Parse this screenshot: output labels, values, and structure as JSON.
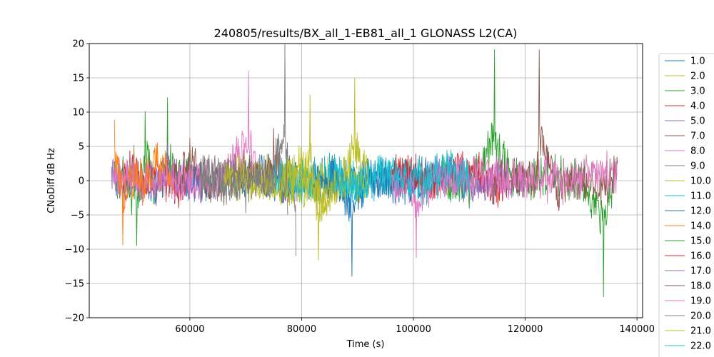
{
  "chart_data": {
    "type": "line",
    "title": "240805/results/BX_all_1-EB81_all_1 GLONASS L2(CA)",
    "xlabel": "Time (s)",
    "ylabel": "CNoDiff dB Hz",
    "xlim": [
      42000,
      141000
    ],
    "ylim": [
      -20,
      20
    ],
    "xticks": [
      {
        "value": 60000,
        "label": "60000"
      },
      {
        "value": 80000,
        "label": "80000"
      },
      {
        "value": 100000,
        "label": "100000"
      },
      {
        "value": 120000,
        "label": "120000"
      },
      {
        "value": 140000,
        "label": "140000"
      }
    ],
    "yticks": [
      {
        "value": 20,
        "label": "20"
      },
      {
        "value": 15,
        "label": "15"
      },
      {
        "value": 10,
        "label": "10"
      },
      {
        "value": 5,
        "label": "5"
      },
      {
        "value": 0,
        "label": "0"
      },
      {
        "value": -5,
        "label": "−5"
      },
      {
        "value": -10,
        "label": "−10"
      },
      {
        "value": -15,
        "label": "−15"
      },
      {
        "value": -20,
        "label": "−20"
      }
    ],
    "grid": true,
    "legend_position": "right, outside plot",
    "series": [
      {
        "name": "1.0",
        "color": "#1f77b4",
        "x": [
          46500,
          50000,
          55000,
          60000,
          65000,
          70000,
          75000,
          80000,
          85000,
          90000,
          95000,
          100000,
          101000
        ],
        "y": [
          1.0,
          0.5,
          -1.0,
          1.2,
          -0.5,
          0.8,
          1.5,
          -0.3,
          0.6,
          -1.0,
          0.4,
          1.0,
          0.2
        ]
      },
      {
        "name": "2.0",
        "color": "#bcbd22",
        "x": [
          70000,
          75000,
          80000,
          83000,
          87000,
          89500,
          92000
        ],
        "y": [
          -1.0,
          2.0,
          -2.5,
          1.0,
          -0.8,
          13.0,
          0.5
        ]
      },
      {
        "name": "3.0",
        "color": "#2ca02c",
        "x": [
          46500,
          48500,
          50500,
          52000,
          54000,
          56000,
          58000,
          60000
        ],
        "y": [
          -2.0,
          1.5,
          -9.5,
          12.3,
          -3.0,
          11.5,
          0.5,
          -1.0
        ]
      },
      {
        "name": "4.0",
        "color": "#d62728",
        "x": [
          48000,
          50000,
          52000,
          54000,
          56000,
          58000,
          60000
        ],
        "y": [
          0.5,
          3.5,
          -1.0,
          4.0,
          0.8,
          -2.0,
          1.0
        ]
      },
      {
        "name": "5.0",
        "color": "#9467bd",
        "x": [
          46000,
          48000,
          50000,
          52000,
          54000,
          56000,
          58000,
          60000,
          62000
        ],
        "y": [
          1.0,
          -2.0,
          4.5,
          1.0,
          -3.0,
          6.5,
          0.0,
          -1.5,
          1.0
        ]
      },
      {
        "name": "7.0",
        "color": "#8c564b",
        "x": [
          57000,
          60000,
          64000,
          68000,
          72000,
          75000,
          78000
        ],
        "y": [
          0.5,
          6.5,
          -1.5,
          4.0,
          1.0,
          5.0,
          -2.0
        ]
      },
      {
        "name": "8.0",
        "color": "#e377c2",
        "x": [
          46500,
          50000,
          55000,
          60000,
          65000,
          70500,
          72000
        ],
        "y": [
          1.5,
          -0.5,
          2.0,
          0.0,
          -1.0,
          16.5,
          0.5
        ]
      },
      {
        "name": "9.0",
        "color": "#7f7f7f",
        "x": [
          62000,
          66000,
          70000,
          74000,
          77000,
          79000
        ],
        "y": [
          0.0,
          2.5,
          -1.5,
          1.0,
          19.3,
          -11.0
        ]
      },
      {
        "name": "10.0",
        "color": "#bcbd22",
        "x": [
          66000,
          70000,
          74000,
          78000,
          81500,
          83000,
          86000
        ],
        "y": [
          -1.0,
          1.5,
          -2.0,
          0.5,
          11.0,
          -12.5,
          0.0
        ]
      },
      {
        "name": "11.0",
        "color": "#17becf",
        "x": [
          75000,
          80000,
          85000,
          90000,
          95000,
          100000,
          105000,
          110000
        ],
        "y": [
          0.5,
          -1.0,
          2.0,
          -1.5,
          1.0,
          0.0,
          2.5,
          -0.5
        ]
      },
      {
        "name": "12.0",
        "color": "#1f77b4",
        "x": [
          82000,
          86000,
          89000,
          92000,
          96000,
          100000,
          104000
        ],
        "y": [
          -0.5,
          1.5,
          -13.0,
          1.0,
          -1.5,
          0.5,
          0.0
        ]
      },
      {
        "name": "14.0",
        "color": "#ff7f0e",
        "x": [
          46500,
          48000,
          50000,
          52000,
          54000,
          57000
        ],
        "y": [
          10.5,
          -7.0,
          3.0,
          -2.0,
          8.5,
          0.0
        ]
      },
      {
        "name": "15.0",
        "color": "#2ca02c",
        "x": [
          105000,
          110000,
          114500,
          118000,
          124000,
          130000,
          134000,
          136000
        ],
        "y": [
          0.5,
          -1.5,
          16.0,
          0.0,
          2.5,
          -1.0,
          -16.5,
          1.0
        ]
      },
      {
        "name": "16.0",
        "color": "#d62728",
        "x": [
          96000,
          100000,
          104000,
          108000,
          112000,
          116000
        ],
        "y": [
          1.0,
          3.5,
          -0.5,
          4.5,
          1.0,
          -1.5
        ]
      },
      {
        "name": "17.0",
        "color": "#9467bd",
        "x": [
          104000,
          108000,
          112000,
          116000,
          120000
        ],
        "y": [
          0.0,
          2.5,
          -3.0,
          1.5,
          -0.5
        ]
      },
      {
        "name": "18.0",
        "color": "#8c564b",
        "x": [
          114000,
          118000,
          122000,
          122500,
          126000,
          130000,
          134000,
          136500
        ],
        "y": [
          -1.0,
          2.0,
          0.5,
          20.0,
          -3.5,
          1.5,
          -2.0,
          2.5
        ]
      },
      {
        "name": "19.0",
        "color": "#e377c2",
        "x": [
          96000,
          99000,
          100500,
          104000,
          128000,
          132000,
          136500
        ],
        "y": [
          -2.0,
          1.0,
          -11.0,
          2.0,
          0.5,
          4.0,
          1.0
        ]
      },
      {
        "name": "20.0",
        "color": "#7f7f7f",
        "x": [
          62000,
          66000,
          70000,
          74000,
          76000,
          77500
        ],
        "y": [
          1.0,
          -2.0,
          2.5,
          -1.0,
          3.0,
          -5.0
        ]
      },
      {
        "name": "21.0",
        "color": "#bcbd22",
        "x": [
          76000,
          80000,
          84000,
          88000,
          92000
        ],
        "y": [
          -1.5,
          2.0,
          -6.5,
          1.0,
          -2.0
        ]
      },
      {
        "name": "22.0",
        "color": "#17becf",
        "x": [
          86000,
          90000,
          94000,
          98000,
          102000,
          106000,
          110000
        ],
        "y": [
          1.0,
          -2.0,
          3.0,
          0.5,
          -1.0,
          4.5,
          0.0
        ]
      }
    ]
  }
}
